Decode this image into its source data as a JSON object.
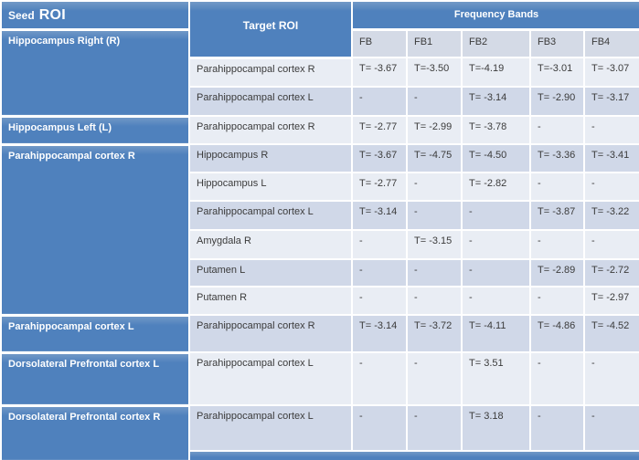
{
  "header": {
    "seed": "Seed",
    "roi": "ROI",
    "target_roi": "Target ROI",
    "frequency_bands": "Frequency Bands",
    "fb_labels": [
      "FB",
      "FB1",
      "FB2",
      "FB3",
      "FB4"
    ]
  },
  "groups": [
    {
      "seed": "Hippocampus Right (R)",
      "rows": [
        {
          "target": "Parahippocampal cortex R",
          "values": [
            "T= -3.67",
            "T=-3.50",
            "T=-4.19",
            "T=-3.01",
            "T= -3.07"
          ]
        },
        {
          "target": "Parahippocampal cortex L",
          "values": [
            "-",
            "-",
            "T= -3.14",
            "T= -2.90",
            "T= -3.17"
          ]
        }
      ]
    },
    {
      "seed": "Hippocampus Left (L)",
      "rows": [
        {
          "target": "Parahippocampal cortex R",
          "values": [
            "T= -2.77",
            "T= -2.99",
            "T= -3.78",
            "-",
            "-"
          ]
        }
      ]
    },
    {
      "seed": "Parahippocampal cortex R",
      "rows": [
        {
          "target": "Hippocampus R",
          "values": [
            "T= -3.67",
            "T= -4.75",
            "T= -4.50",
            "T= -3.36",
            "T= -3.41"
          ]
        },
        {
          "target": "Hippocampus L",
          "values": [
            "T= -2.77",
            "-",
            "T= -2.82",
            "-",
            "-"
          ]
        },
        {
          "target": "Parahippocampal cortex L",
          "values": [
            "T= -3.14",
            "-",
            "-",
            "T= -3.87",
            "T= -3.22"
          ]
        },
        {
          "target": "Amygdala R",
          "values": [
            "-",
            "T= -3.15",
            "-",
            "-",
            "-"
          ]
        },
        {
          "target": "Putamen L",
          "values": [
            "-",
            "-",
            "-",
            "T= -2.89",
            "T= -2.72"
          ]
        },
        {
          "target": "Putamen R",
          "values": [
            "-",
            "-",
            "-",
            "-",
            "T= -2.97"
          ]
        }
      ]
    },
    {
      "seed": "Parahippocampal cortex L",
      "rows": [
        {
          "target": "Parahippocampal cortex R",
          "values": [
            "T= -3.14",
            "T= -3.72",
            "T= -4.11",
            "T= -4.86",
            "T= -4.52"
          ]
        }
      ]
    },
    {
      "seed": "Dorsolateral Prefrontal cortex L",
      "rows": [
        {
          "target": "Parahippocampal cortex L",
          "values": [
            "-",
            "-",
            "T= 3.51",
            "-",
            "-"
          ]
        }
      ]
    },
    {
      "seed": "Dorsolateral Prefrontal cortex R",
      "rows": [
        {
          "target": "Parahippocampal cortex L",
          "values": [
            "-",
            "-",
            "T= 3.18",
            "-",
            "-"
          ]
        }
      ]
    }
  ],
  "colors": {
    "header_blue": "#4f81bd",
    "band_light": "#e9edf4",
    "band_dark": "#d0d8e8",
    "fb_header_row": "#d4dae6",
    "text": "#3b3b3b",
    "grid_lines": "#ffffff"
  }
}
